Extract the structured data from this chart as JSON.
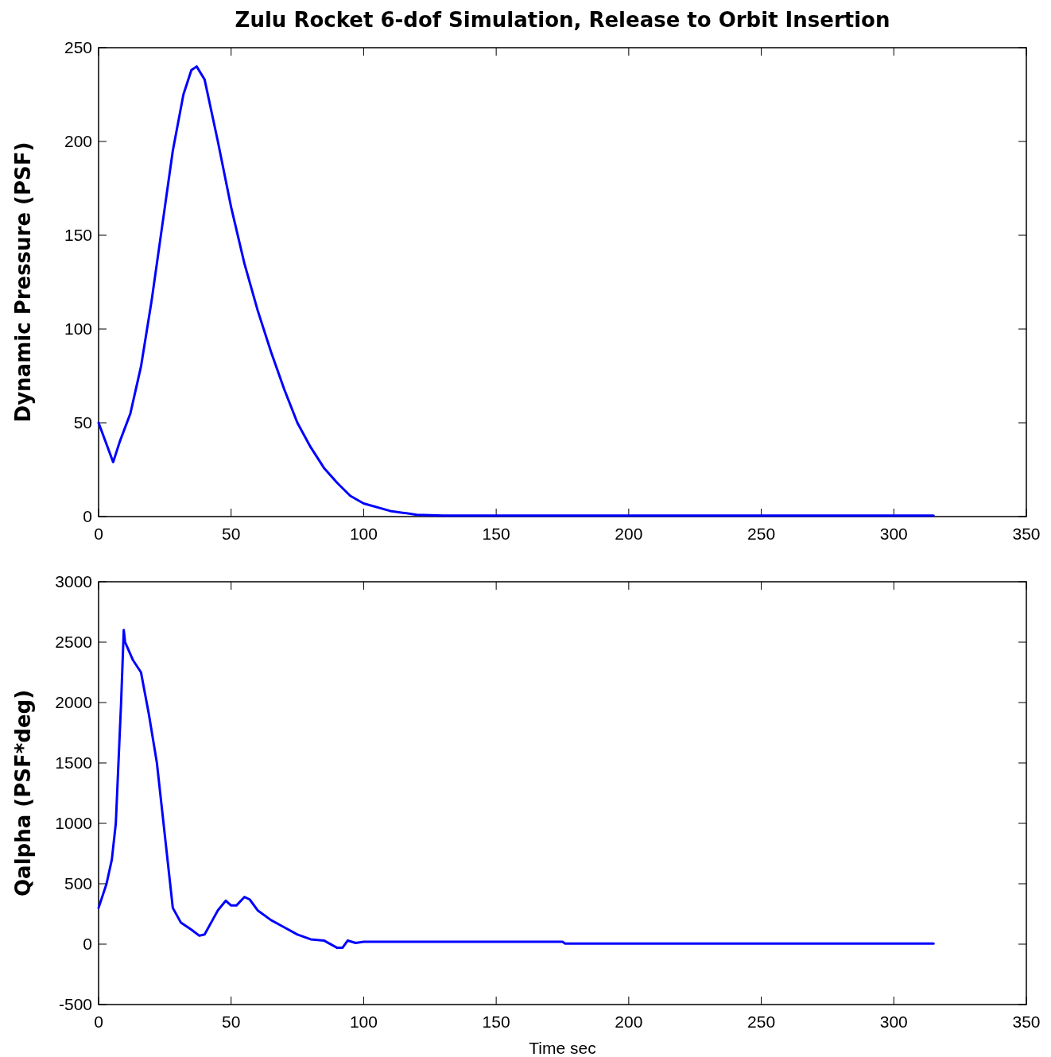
{
  "chart_data": [
    {
      "type": "line",
      "title": "Zulu Rocket 6-dof Simulation, Release to Orbit Insertion",
      "ylabel": "Dynamic Pressure (PSF)",
      "xlim": [
        0,
        350
      ],
      "xticks": [
        0,
        50,
        100,
        150,
        200,
        250,
        300,
        350
      ],
      "ylim": [
        0,
        250
      ],
      "yticks": [
        0,
        50,
        100,
        150,
        200,
        250
      ],
      "marker": "none",
      "line_style": "solid",
      "series": [
        {
          "color": "#0000ff",
          "x": [
            0,
            5.5,
            8,
            12,
            16,
            20,
            25,
            28,
            32,
            35,
            37,
            40,
            45,
            50,
            55,
            60,
            65,
            70,
            75,
            80,
            85,
            90,
            95,
            100,
            110,
            120,
            130,
            150,
            200,
            250,
            315
          ],
          "values": [
            50,
            29,
            40,
            55,
            80,
            115,
            165,
            195,
            225,
            238,
            240,
            233,
            200,
            165,
            135,
            110,
            88,
            68,
            50,
            37,
            26,
            18,
            11,
            7,
            3,
            1,
            0.5,
            0.5,
            0.5,
            0.5,
            0.5
          ]
        }
      ]
    },
    {
      "type": "line",
      "xlabel": "Time sec",
      "ylabel": "Qalpha (PSF*deg)",
      "xlim": [
        0,
        350
      ],
      "xticks": [
        0,
        50,
        100,
        150,
        200,
        250,
        300,
        350
      ],
      "ylim": [
        -500,
        3000
      ],
      "yticks": [
        -500,
        0,
        500,
        1000,
        1500,
        2000,
        2500,
        3000
      ],
      "marker": "none",
      "line_style": "solid",
      "series": [
        {
          "color": "#0000ff",
          "x": [
            0,
            3,
            5,
            6.5,
            7.5,
            8.5,
            9.5,
            10,
            11,
            13,
            16,
            19,
            22,
            25,
            28,
            31,
            35,
            38,
            40,
            43,
            45,
            48,
            50,
            52,
            55,
            57,
            60,
            65,
            70,
            75,
            80,
            85,
            90,
            92,
            94,
            97,
            100,
            175,
            176,
            315
          ],
          "values": [
            300,
            500,
            700,
            1000,
            1500,
            2000,
            2600,
            2500,
            2450,
            2350,
            2250,
            1900,
            1500,
            900,
            300,
            180,
            120,
            70,
            80,
            200,
            280,
            360,
            320,
            320,
            390,
            370,
            280,
            200,
            140,
            80,
            40,
            30,
            -30,
            -30,
            30,
            10,
            20,
            20,
            5,
            5
          ]
        }
      ]
    }
  ]
}
